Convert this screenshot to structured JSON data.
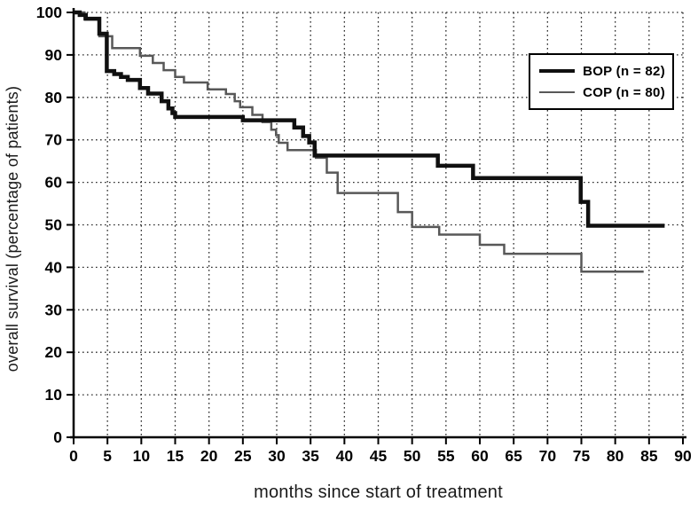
{
  "chart_data": {
    "type": "line",
    "subtype": "kaplan-meier-step-survival",
    "title": "",
    "xlabel": "months since start of treatment",
    "ylabel": "overall survival (percentage of patients)",
    "xlim": [
      0,
      90
    ],
    "ylim": [
      0,
      100
    ],
    "x_ticks": [
      0,
      5,
      10,
      15,
      20,
      25,
      30,
      35,
      40,
      45,
      50,
      55,
      60,
      65,
      70,
      75,
      80,
      85,
      90
    ],
    "y_ticks": [
      0,
      10,
      20,
      30,
      40,
      50,
      60,
      70,
      80,
      90,
      100
    ],
    "grid": "dotted, both axes",
    "grid_color": "#2b2b2b",
    "axis_color": "#000000",
    "background_color": "#ffffff",
    "legend_position": "upper right",
    "series": [
      {
        "name": "BOP (n = 82)",
        "color": "#101010",
        "stroke_width": 4.5,
        "end_x": 87.3,
        "steps": [
          [
            0,
            100
          ],
          [
            0.9,
            99.4
          ],
          [
            1.8,
            98.5
          ],
          [
            3.8,
            95.0
          ],
          [
            4.9,
            86.2
          ],
          [
            6,
            85.5
          ],
          [
            7,
            84.8
          ],
          [
            8,
            84.1
          ],
          [
            9.8,
            82.2
          ],
          [
            11,
            80.9
          ],
          [
            13,
            79.1
          ],
          [
            14,
            77.4
          ],
          [
            14.6,
            76.3
          ],
          [
            15,
            75.4
          ],
          [
            25,
            74.6
          ],
          [
            32.6,
            72.9
          ],
          [
            33.9,
            70.9
          ],
          [
            34.8,
            69.4
          ],
          [
            35.6,
            66.3
          ],
          [
            53.8,
            63.9
          ],
          [
            59,
            61.0
          ],
          [
            74.9,
            55.4
          ],
          [
            76,
            49.8
          ]
        ]
      },
      {
        "name": "COP (n = 80)",
        "color": "#585858",
        "stroke_width": 2.5,
        "end_x": 84.2,
        "steps": [
          [
            0,
            100
          ],
          [
            1.6,
            98.4
          ],
          [
            3.8,
            94.4
          ],
          [
            5.7,
            91.6
          ],
          [
            9.8,
            89.8
          ],
          [
            11.7,
            88.1
          ],
          [
            13.3,
            86.4
          ],
          [
            15,
            84.8
          ],
          [
            16.3,
            83.5
          ],
          [
            19.8,
            81.9
          ],
          [
            22.5,
            80.8
          ],
          [
            23.8,
            79.1
          ],
          [
            24.6,
            77.7
          ],
          [
            26.4,
            75.9
          ],
          [
            27.9,
            74.2
          ],
          [
            29.2,
            72.4
          ],
          [
            29.9,
            71.1
          ],
          [
            30.3,
            69.3
          ],
          [
            31.6,
            67.6
          ],
          [
            35.8,
            65.8
          ],
          [
            37.4,
            62.3
          ],
          [
            39,
            57.5
          ],
          [
            47.9,
            53.0
          ],
          [
            50,
            49.5
          ],
          [
            54,
            47.7
          ],
          [
            60,
            45.3
          ],
          [
            63.6,
            43.2
          ],
          [
            75,
            39.0
          ]
        ]
      }
    ]
  }
}
